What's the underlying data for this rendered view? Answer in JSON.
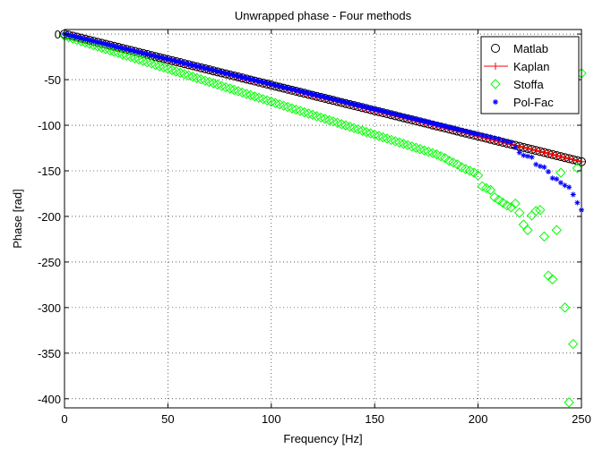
{
  "chart_data": {
    "type": "scatter",
    "title": "Unwrapped phase - Four methods",
    "xlabel": "Frequency [Hz]",
    "ylabel": "Phase [rad]",
    "xlim": [
      0,
      250
    ],
    "ylim": [
      -410,
      5
    ],
    "xticks": [
      0,
      50,
      100,
      150,
      200,
      250
    ],
    "yticks": [
      0,
      -50,
      -100,
      -150,
      -200,
      -250,
      -300,
      -350,
      -400
    ],
    "grid": true,
    "legend": {
      "placement": "top-right"
    },
    "series": [
      {
        "name": "Matlab",
        "marker": "circle",
        "color": "#000000",
        "line": {
          "from": [
            0,
            0
          ],
          "to": [
            250,
            -140
          ],
          "step": 2
        }
      },
      {
        "name": "Kaplan",
        "marker": "plus-line",
        "color": "#ff0000",
        "line": {
          "from": [
            0,
            0
          ],
          "to": [
            250,
            -140
          ],
          "step": 2
        }
      },
      {
        "name": "Stoffa",
        "marker": "diamond",
        "color": "#00ff00",
        "line": {
          "from": [
            0,
            -2
          ],
          "to": [
            180,
            -132
          ],
          "step": 2
        },
        "points": [
          [
            182,
            -134
          ],
          [
            184,
            -136
          ],
          [
            186,
            -139
          ],
          [
            188,
            -141
          ],
          [
            190,
            -143
          ],
          [
            192,
            -146
          ],
          [
            194,
            -148
          ],
          [
            196,
            -150
          ],
          [
            198,
            -152
          ],
          [
            200,
            -155
          ],
          [
            202,
            -167
          ],
          [
            204,
            -169
          ],
          [
            206,
            -171
          ],
          [
            208,
            -179
          ],
          [
            210,
            -182
          ],
          [
            212,
            -185
          ],
          [
            214,
            -188
          ],
          [
            216,
            -190
          ],
          [
            218,
            -186
          ],
          [
            220,
            -196
          ],
          [
            222,
            -209
          ],
          [
            224,
            -215
          ],
          [
            226,
            -199
          ],
          [
            228,
            -194
          ],
          [
            230,
            -193
          ],
          [
            232,
            -222
          ],
          [
            234,
            -265
          ],
          [
            236,
            -269
          ],
          [
            238,
            -215
          ],
          [
            240,
            -152
          ],
          [
            242,
            -300
          ],
          [
            244,
            -404
          ],
          [
            246,
            -340
          ],
          [
            248,
            -147
          ],
          [
            250,
            -43
          ]
        ]
      },
      {
        "name": "Pol-Fac",
        "marker": "asterisk",
        "color": "#0000ff",
        "line": {
          "from": [
            0,
            0
          ],
          "to": [
            200,
            -110
          ],
          "step": 1
        },
        "points": [
          [
            202,
            -111
          ],
          [
            204,
            -112
          ],
          [
            206,
            -113
          ],
          [
            208,
            -114
          ],
          [
            210,
            -115
          ],
          [
            212,
            -117
          ],
          [
            214,
            -118
          ],
          [
            216,
            -119
          ],
          [
            218,
            -124
          ],
          [
            220,
            -130
          ],
          [
            222,
            -133
          ],
          [
            224,
            -134
          ],
          [
            226,
            -135
          ],
          [
            228,
            -143
          ],
          [
            230,
            -145
          ],
          [
            232,
            -146
          ],
          [
            234,
            -151
          ],
          [
            236,
            -158
          ],
          [
            238,
            -159
          ],
          [
            240,
            -163
          ],
          [
            242,
            -166
          ],
          [
            244,
            -168
          ],
          [
            246,
            -176
          ],
          [
            248,
            -185
          ],
          [
            250,
            -193
          ]
        ]
      }
    ]
  }
}
